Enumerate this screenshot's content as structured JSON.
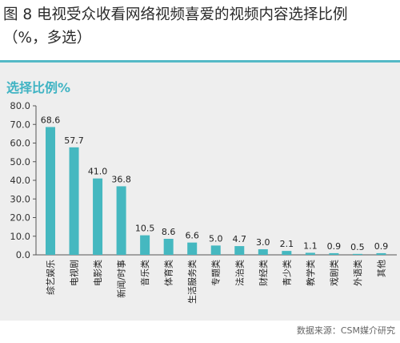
{
  "header": {
    "title_line1": "图 8 电视受众收看网络视频喜爱的视频内容选择比例",
    "title_line2": "（%，多选）"
  },
  "chart_subtitle": "选择比例%",
  "source": "数据来源：CSM媒介研究",
  "colors": {
    "bar": "#45b8c0",
    "accent": "#54b9c6",
    "panel": "#eeeeee"
  },
  "chart_data": {
    "type": "bar",
    "categories": [
      "综艺娱乐",
      "电视剧",
      "电影类",
      "新闻/时事",
      "音乐类",
      "体育类",
      "生活服务类",
      "专题类",
      "法治类",
      "财经类",
      "青少类",
      "教学类",
      "戏剧类",
      "外语类",
      "其他"
    ],
    "values": [
      68.6,
      57.7,
      41.0,
      36.8,
      10.5,
      8.6,
      6.6,
      5.0,
      4.7,
      3.0,
      2.1,
      1.1,
      0.9,
      0.5,
      0.9
    ],
    "value_labels": [
      "68.6",
      "57.7",
      "41.0",
      "36.8",
      "10.5",
      "8.6",
      "6.6",
      "5.0",
      "4.7",
      "3.0",
      "2.1",
      "1.1",
      "0.9",
      "0.5",
      "0.9"
    ],
    "ylim": [
      0,
      80
    ],
    "yticks": [
      0,
      10,
      20,
      30,
      40,
      50,
      60,
      70,
      80
    ],
    "ytick_labels": [
      "0.0",
      "10.0",
      "20.0",
      "30.0",
      "40.0",
      "50.0",
      "60.0",
      "70.0",
      "80.0"
    ],
    "grid": false
  }
}
